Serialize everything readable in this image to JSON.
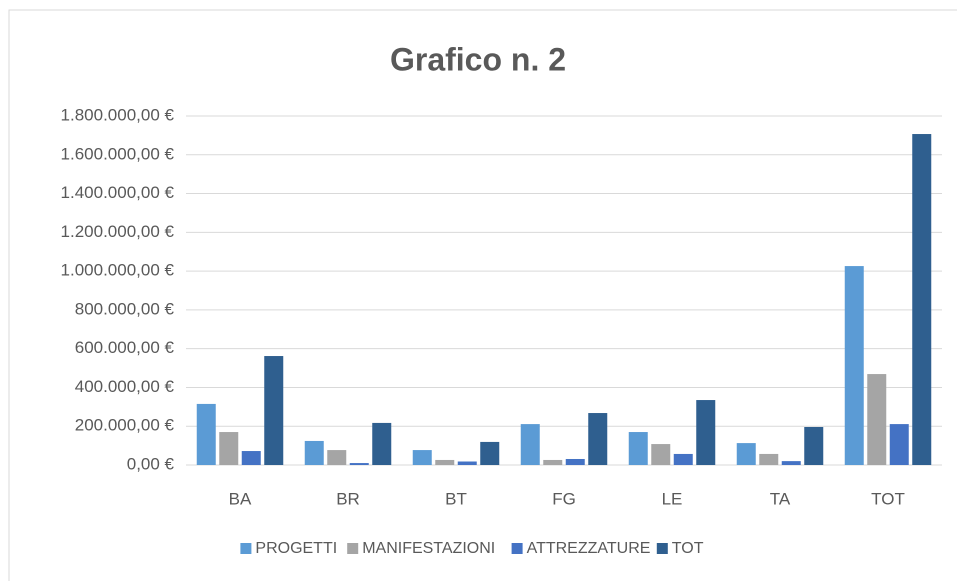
{
  "chart_data": {
    "type": "bar",
    "title": "Grafico n. 2",
    "categories": [
      "BA",
      "BR",
      "BT",
      "FG",
      "LE",
      "TA",
      "TOT"
    ],
    "series": [
      {
        "name": "PROGETTI",
        "color": "#5b9bd5",
        "values": [
          315000,
          124000,
          77000,
          211000,
          170000,
          113000,
          1026000
        ]
      },
      {
        "name": "MANIFESTAZIONI",
        "color": "#a5a5a5",
        "values": [
          170000,
          77000,
          26000,
          26000,
          108000,
          57000,
          469000
        ]
      },
      {
        "name": "ATTREZZATURE",
        "color": "#4472c4",
        "values": [
          72000,
          10000,
          18000,
          31000,
          57000,
          20000,
          211000
        ]
      },
      {
        "name": "TOT",
        "color": "#2f5f8f",
        "values": [
          562000,
          217000,
          119000,
          268000,
          335000,
          196000,
          1707000
        ]
      }
    ],
    "ylim": [
      0,
      1800000
    ],
    "yticks": [
      {
        "value": 0,
        "label": "0,00 €"
      },
      {
        "value": 200000,
        "label": "200.000,00 €"
      },
      {
        "value": 400000,
        "label": "400.000,00 €"
      },
      {
        "value": 600000,
        "label": "600.000,00 €"
      },
      {
        "value": 800000,
        "label": "800.000,00 €"
      },
      {
        "value": 1000000,
        "label": "1.000.000,00 €"
      },
      {
        "value": 1200000,
        "label": "1.200.000,00 €"
      },
      {
        "value": 1400000,
        "label": "1.400.000,00 €"
      },
      {
        "value": 1600000,
        "label": "1.600.000,00 €"
      },
      {
        "value": 1800000,
        "label": "1.800.000,00 €"
      }
    ],
    "grid": true,
    "legend": "bottom"
  }
}
